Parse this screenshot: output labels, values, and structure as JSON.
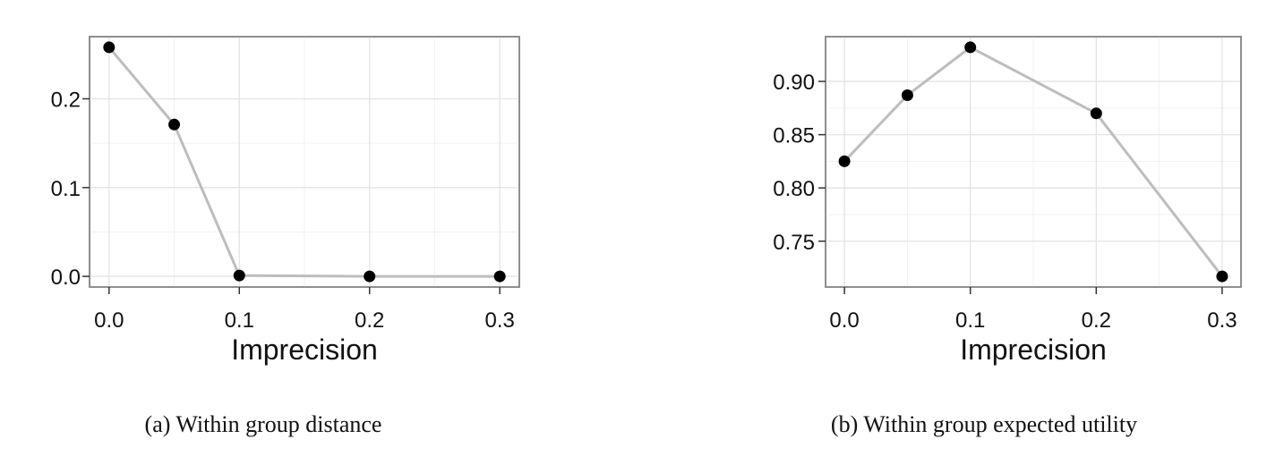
{
  "chart_data": [
    {
      "type": "line",
      "caption": "(a) Within group distance",
      "xlabel": "Imprecision",
      "ylabel": "",
      "x": [
        0.0,
        0.05,
        0.1,
        0.2,
        0.3
      ],
      "y": [
        0.258,
        0.171,
        0.001,
        0.0,
        0.0
      ],
      "xlim": [
        -0.015,
        0.315
      ],
      "ylim": [
        -0.012,
        0.27
      ],
      "xticks": [
        0.0,
        0.1,
        0.2,
        0.3
      ],
      "xtick_labels": [
        "0.0",
        "0.1",
        "0.2",
        "0.3"
      ],
      "yticks": [
        0.0,
        0.1,
        0.2
      ],
      "ytick_labels": [
        "0.0",
        "0.1",
        "0.2"
      ],
      "grid": true,
      "line_color": "#bdbdbd",
      "point_color": "#000000"
    },
    {
      "type": "line",
      "caption": "(b) Within group expected utility",
      "xlabel": "Imprecision",
      "ylabel": "",
      "x": [
        0.0,
        0.05,
        0.1,
        0.2,
        0.3
      ],
      "y": [
        0.825,
        0.887,
        0.932,
        0.87,
        0.717
      ],
      "xlim": [
        -0.015,
        0.315
      ],
      "ylim": [
        0.707,
        0.942
      ],
      "xticks": [
        0.0,
        0.1,
        0.2,
        0.3
      ],
      "xtick_labels": [
        "0.0",
        "0.1",
        "0.2",
        "0.3"
      ],
      "yticks": [
        0.75,
        0.8,
        0.85,
        0.9
      ],
      "ytick_labels": [
        "0.75",
        "0.80",
        "0.85",
        "0.90"
      ],
      "grid": true,
      "line_color": "#bdbdbd",
      "point_color": "#000000"
    }
  ]
}
